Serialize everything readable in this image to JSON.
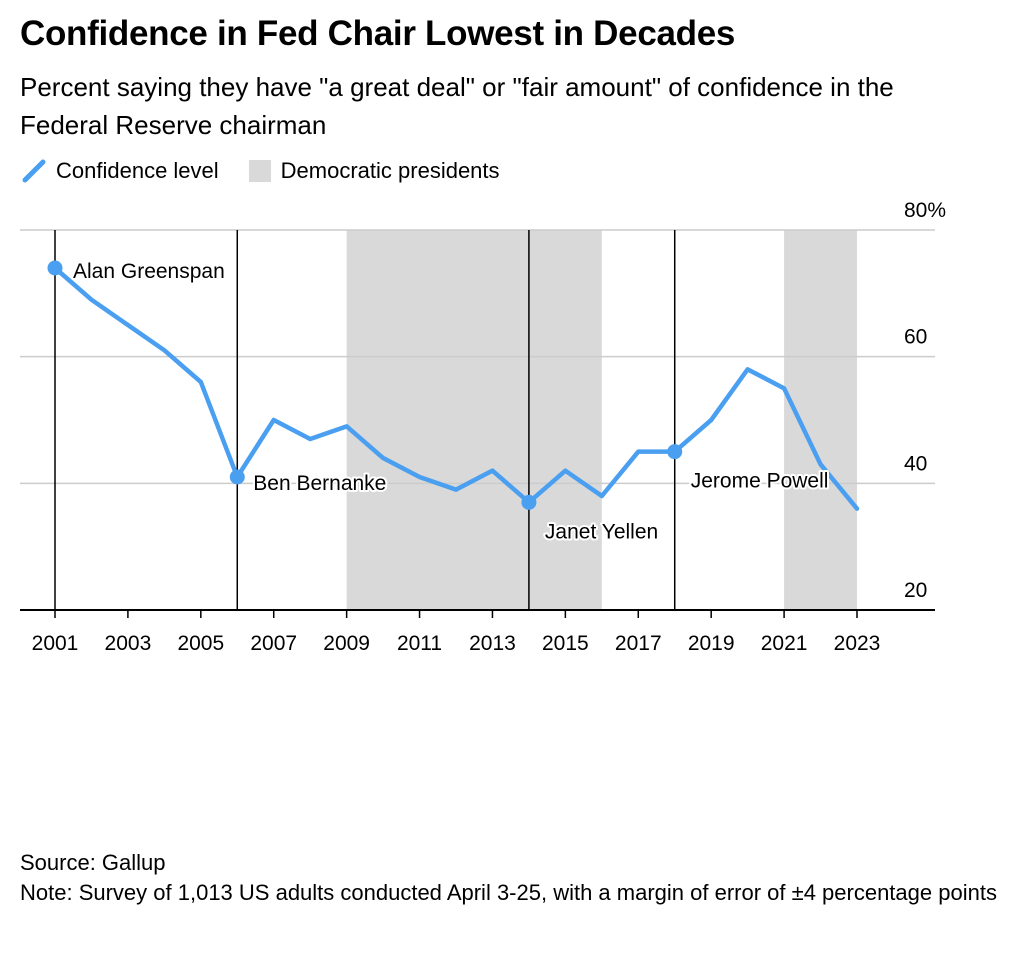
{
  "title": "Confidence in Fed Chair Lowest in Decades",
  "subtitle": "Percent saying they have \"a great deal\" or \"fair amount\" of confidence in the Federal Reserve chairman",
  "legend": {
    "line_label": "Confidence level",
    "shade_label": "Democratic presidents"
  },
  "colors": {
    "line": "#4a9ff0",
    "shade": "#d9d9d9",
    "grid": "#cccccc",
    "axis": "#000000"
  },
  "chart_data": {
    "type": "line",
    "x": [
      2001,
      2002,
      2003,
      2004,
      2005,
      2006,
      2007,
      2008,
      2009,
      2010,
      2011,
      2012,
      2013,
      2014,
      2015,
      2016,
      2017,
      2018,
      2019,
      2020,
      2021,
      2022,
      2023
    ],
    "series": [
      {
        "name": "Confidence level",
        "values": [
          74,
          69,
          65,
          61,
          56,
          41,
          50,
          47,
          49,
          44,
          41,
          39,
          42,
          37,
          42,
          38,
          45,
          45,
          50,
          58,
          55,
          43,
          36
        ]
      }
    ],
    "ylim": [
      20,
      80
    ],
    "yticks": [
      20,
      40,
      60,
      80
    ],
    "ytick_labels": [
      "20",
      "40",
      "60",
      "80%"
    ],
    "xticks": [
      2001,
      2003,
      2005,
      2007,
      2009,
      2011,
      2013,
      2015,
      2017,
      2019,
      2021,
      2023
    ],
    "xtick_labels": [
      "2001",
      "2003",
      "2005",
      "2007",
      "2009",
      "2011",
      "2013",
      "2015",
      "2017",
      "2019",
      "2021",
      "2023"
    ],
    "shaded_ranges": [
      [
        2009,
        2016
      ],
      [
        2021,
        2023
      ]
    ],
    "chair_lines": [
      2001,
      2006,
      2014,
      2018
    ],
    "annotations": [
      {
        "x": 2001,
        "y": 74,
        "text": "Alan Greenspan"
      },
      {
        "x": 2006,
        "y": 41,
        "text": "Ben Bernanke"
      },
      {
        "x": 2014,
        "y": 37,
        "text": "Janet Yellen"
      },
      {
        "x": 2018,
        "y": 45,
        "text": "Jerome Powell"
      }
    ],
    "grid": true,
    "legend_position": "top-left"
  },
  "footer": {
    "source": "Source: Gallup",
    "note": "Note: Survey of 1,013 US adults conducted April 3-25, with a margin of error of ±4 percentage points"
  }
}
